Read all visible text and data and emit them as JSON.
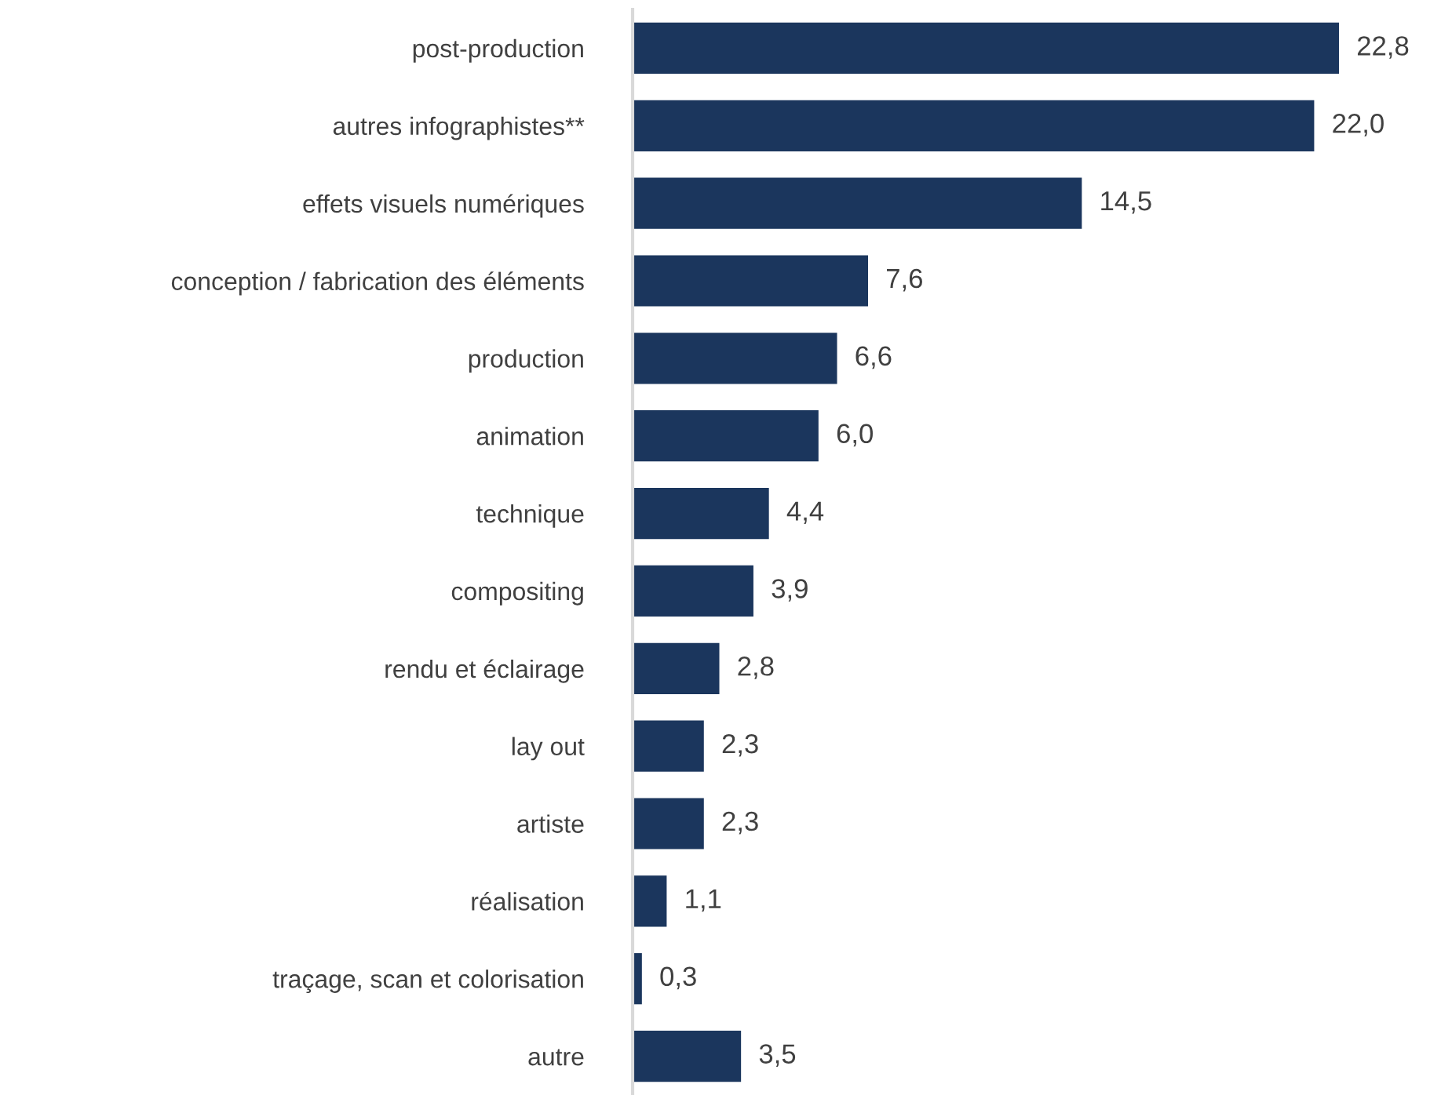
{
  "chart_data": {
    "type": "bar",
    "orientation": "horizontal",
    "categories": [
      "post-production",
      "autres infographistes**",
      "effets visuels numériques",
      "conception / fabrication des éléments",
      "production",
      "animation",
      "technique",
      "compositing",
      "rendu et éclairage",
      "lay out",
      "artiste",
      "réalisation",
      "traçage, scan et colorisation",
      "autre"
    ],
    "values": [
      22.8,
      22.0,
      14.5,
      7.6,
      6.6,
      6.0,
      4.4,
      3.9,
      2.8,
      2.3,
      2.3,
      1.1,
      0.3,
      3.5
    ],
    "value_labels": [
      "22,8",
      "22,0",
      "14,5",
      "7,6",
      "6,6",
      "6,0",
      "4,4",
      "3,9",
      "2,8",
      "2,3",
      "2,3",
      "1,1",
      "0,3",
      "3,5"
    ],
    "color": "#1b365d",
    "grid": false,
    "legend": false
  }
}
